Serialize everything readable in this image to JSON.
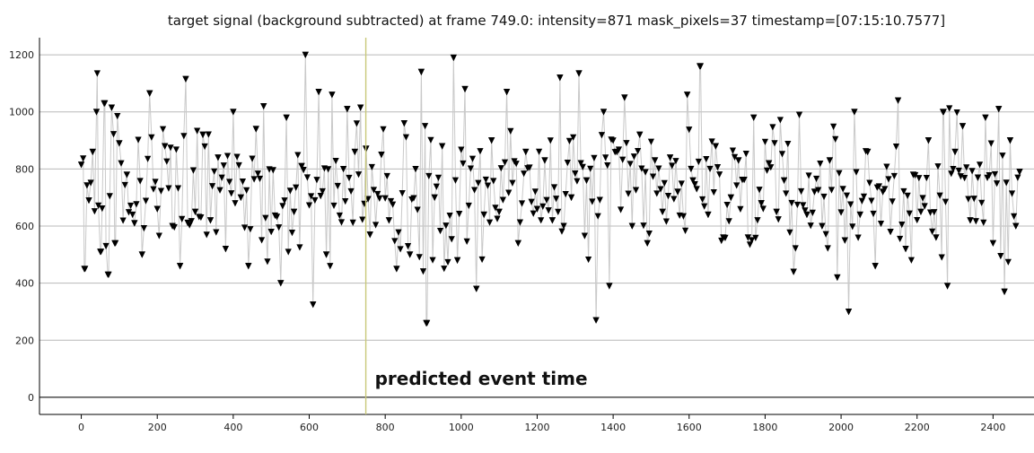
{
  "chart_data": {
    "type": "scatter",
    "title": "target signal (background subtracted) at frame 749.0: intensity=871 mask_pixels=37 timestamp=[07:15:10.7577]",
    "xlim": [
      -110,
      2470
    ],
    "ylim": [
      -60,
      1260
    ],
    "xticks": [
      0,
      200,
      400,
      600,
      800,
      1000,
      1200,
      1400,
      1600,
      1800,
      2000,
      2200,
      2400
    ],
    "yticks": [
      0,
      200,
      400,
      600,
      800,
      1000,
      1200
    ],
    "grid": true,
    "series_style": "connected line with inverted triangle markers",
    "marker_color": "#000000",
    "line_color": "#c9c9c9",
    "event_line_color": "#c8c87a",
    "annotation": {
      "text": "predicted event time",
      "x": 749
    },
    "n_points": 2470,
    "x_start": 0,
    "x_step": 1,
    "series": [
      {
        "y_values_sparse": [
          {
            "x": 0,
            "y": 815
          },
          {
            "x": 8,
            "y": 450
          },
          {
            "x": 20,
            "y": 690
          },
          {
            "x": 30,
            "y": 860
          },
          {
            "x": 40,
            "y": 1000
          },
          {
            "x": 42,
            "y": 1135
          },
          {
            "x": 52,
            "y": 510
          },
          {
            "x": 62,
            "y": 1030
          },
          {
            "x": 72,
            "y": 430
          },
          {
            "x": 80,
            "y": 1015
          },
          {
            "x": 88,
            "y": 540
          },
          {
            "x": 100,
            "y": 890
          },
          {
            "x": 120,
            "y": 780
          },
          {
            "x": 140,
            "y": 610
          },
          {
            "x": 160,
            "y": 500
          },
          {
            "x": 180,
            "y": 1065
          },
          {
            "x": 200,
            "y": 660
          },
          {
            "x": 220,
            "y": 880
          },
          {
            "x": 240,
            "y": 600
          },
          {
            "x": 260,
            "y": 460
          },
          {
            "x": 275,
            "y": 1115
          },
          {
            "x": 300,
            "y": 650
          },
          {
            "x": 320,
            "y": 920
          },
          {
            "x": 340,
            "y": 620
          },
          {
            "x": 360,
            "y": 840
          },
          {
            "x": 380,
            "y": 520
          },
          {
            "x": 400,
            "y": 1000
          },
          {
            "x": 420,
            "y": 700
          },
          {
            "x": 440,
            "y": 460
          },
          {
            "x": 460,
            "y": 940
          },
          {
            "x": 480,
            "y": 1020
          },
          {
            "x": 500,
            "y": 580
          },
          {
            "x": 525,
            "y": 400
          },
          {
            "x": 540,
            "y": 980
          },
          {
            "x": 560,
            "y": 650
          },
          {
            "x": 580,
            "y": 810
          },
          {
            "x": 590,
            "y": 1200
          },
          {
            "x": 610,
            "y": 325
          },
          {
            "x": 625,
            "y": 1070
          },
          {
            "x": 645,
            "y": 500
          },
          {
            "x": 660,
            "y": 1060
          },
          {
            "x": 690,
            "y": 800
          },
          {
            "x": 700,
            "y": 1010
          },
          {
            "x": 720,
            "y": 860
          },
          {
            "x": 735,
            "y": 1015
          },
          {
            "x": 749,
            "y": 871
          },
          {
            "x": 760,
            "y": 570
          },
          {
            "x": 790,
            "y": 850
          },
          {
            "x": 810,
            "y": 620
          },
          {
            "x": 830,
            "y": 450
          },
          {
            "x": 850,
            "y": 960
          },
          {
            "x": 865,
            "y": 500
          },
          {
            "x": 880,
            "y": 800
          },
          {
            "x": 895,
            "y": 1140
          },
          {
            "x": 908,
            "y": 260
          },
          {
            "x": 930,
            "y": 700
          },
          {
            "x": 950,
            "y": 880
          },
          {
            "x": 980,
            "y": 1190
          },
          {
            "x": 990,
            "y": 480
          },
          {
            "x": 1010,
            "y": 1080
          },
          {
            "x": 1040,
            "y": 380
          },
          {
            "x": 1060,
            "y": 640
          },
          {
            "x": 1080,
            "y": 900
          },
          {
            "x": 1100,
            "y": 650
          },
          {
            "x": 1120,
            "y": 1070
          },
          {
            "x": 1150,
            "y": 540
          },
          {
            "x": 1170,
            "y": 860
          },
          {
            "x": 1200,
            "y": 660
          },
          {
            "x": 1220,
            "y": 830
          },
          {
            "x": 1240,
            "y": 620
          },
          {
            "x": 1260,
            "y": 1120
          },
          {
            "x": 1290,
            "y": 700
          },
          {
            "x": 1310,
            "y": 1135
          },
          {
            "x": 1330,
            "y": 760
          },
          {
            "x": 1355,
            "y": 270
          },
          {
            "x": 1375,
            "y": 1000
          },
          {
            "x": 1390,
            "y": 390
          },
          {
            "x": 1410,
            "y": 860
          },
          {
            "x": 1430,
            "y": 1050
          },
          {
            "x": 1450,
            "y": 600
          },
          {
            "x": 1470,
            "y": 920
          },
          {
            "x": 1490,
            "y": 540
          },
          {
            "x": 1510,
            "y": 830
          },
          {
            "x": 1530,
            "y": 650
          },
          {
            "x": 1550,
            "y": 840
          },
          {
            "x": 1570,
            "y": 720
          },
          {
            "x": 1595,
            "y": 1060
          },
          {
            "x": 1610,
            "y": 760
          },
          {
            "x": 1628,
            "y": 1160
          },
          {
            "x": 1650,
            "y": 640
          },
          {
            "x": 1670,
            "y": 880
          },
          {
            "x": 1690,
            "y": 560
          },
          {
            "x": 1710,
            "y": 700
          },
          {
            "x": 1730,
            "y": 830
          },
          {
            "x": 1755,
            "y": 560
          },
          {
            "x": 1770,
            "y": 980
          },
          {
            "x": 1790,
            "y": 680
          },
          {
            "x": 1810,
            "y": 820
          },
          {
            "x": 1830,
            "y": 650
          },
          {
            "x": 1850,
            "y": 760
          },
          {
            "x": 1875,
            "y": 440
          },
          {
            "x": 1890,
            "y": 990
          },
          {
            "x": 1910,
            "y": 640
          },
          {
            "x": 1930,
            "y": 720
          },
          {
            "x": 1950,
            "y": 600
          },
          {
            "x": 1970,
            "y": 830
          },
          {
            "x": 1990,
            "y": 420
          },
          {
            "x": 2010,
            "y": 550
          },
          {
            "x": 2020,
            "y": 300
          },
          {
            "x": 2035,
            "y": 1000
          },
          {
            "x": 2050,
            "y": 640
          },
          {
            "x": 2070,
            "y": 860
          },
          {
            "x": 2090,
            "y": 460
          },
          {
            "x": 2110,
            "y": 720
          },
          {
            "x": 2130,
            "y": 580
          },
          {
            "x": 2150,
            "y": 1040
          },
          {
            "x": 2170,
            "y": 520
          },
          {
            "x": 2190,
            "y": 780
          },
          {
            "x": 2210,
            "y": 650
          },
          {
            "x": 2230,
            "y": 900
          },
          {
            "x": 2250,
            "y": 560
          },
          {
            "x": 2268,
            "y": 1000
          },
          {
            "x": 2280,
            "y": 390
          },
          {
            "x": 2300,
            "y": 860
          },
          {
            "x": 2320,
            "y": 950
          },
          {
            "x": 2340,
            "y": 620
          },
          {
            "x": 2360,
            "y": 770
          },
          {
            "x": 2380,
            "y": 980
          },
          {
            "x": 2400,
            "y": 540
          },
          {
            "x": 2415,
            "y": 1010
          },
          {
            "x": 2430,
            "y": 370
          },
          {
            "x": 2445,
            "y": 900
          },
          {
            "x": 2460,
            "y": 600
          },
          {
            "x": 2470,
            "y": 790
          }
        ],
        "center": 720,
        "noise_sd": 150,
        "min": 250,
        "max": 1210
      }
    ]
  }
}
